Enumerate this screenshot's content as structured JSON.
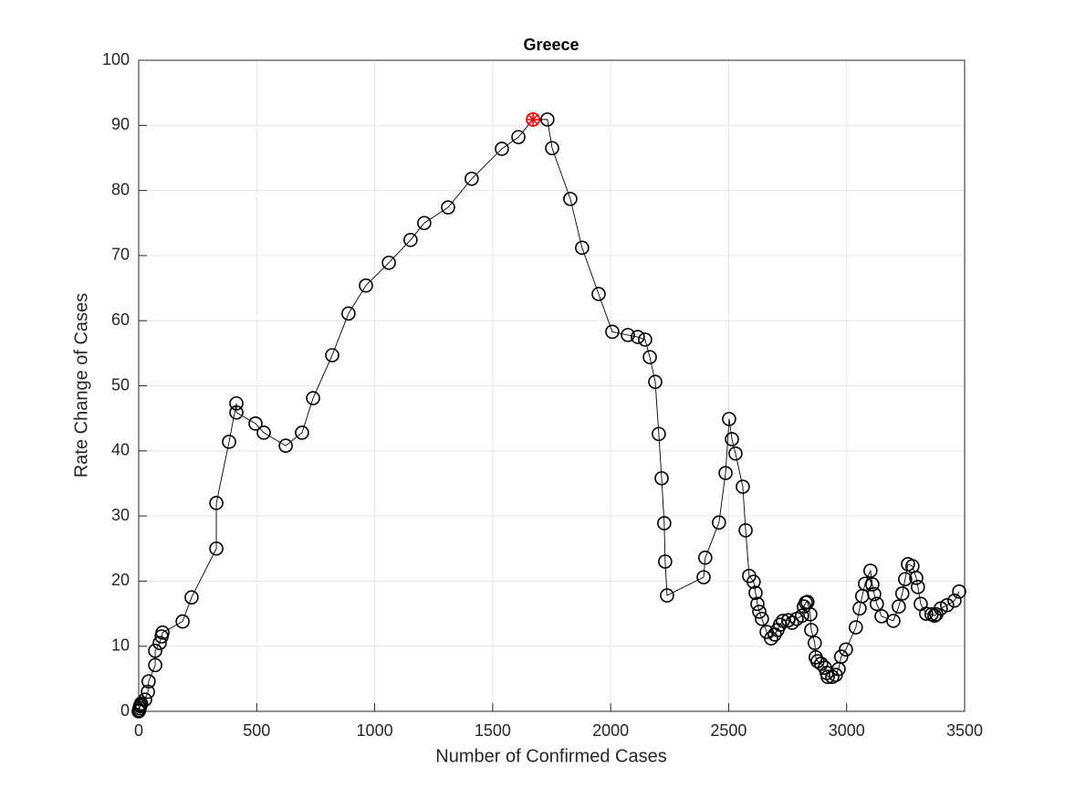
{
  "chart_data": {
    "type": "line",
    "title": "Greece",
    "xlabel": "Number of Confirmed Cases",
    "ylabel": "Rate Change of Cases",
    "x": [
      0,
      2,
      4,
      6,
      8,
      10,
      27,
      39,
      42,
      70,
      70,
      89,
      97,
      101,
      186,
      224,
      329,
      329,
      383,
      414,
      414,
      495,
      530,
      623,
      692,
      739,
      820,
      889,
      963,
      1060,
      1152,
      1210,
      1311,
      1411,
      1539,
      1609,
      1671,
      1732,
      1752,
      1829,
      1879,
      1949,
      2007,
      2073,
      2115,
      2146,
      2166,
      2189,
      2204,
      2216,
      2227,
      2231,
      2239,
      2394,
      2401,
      2459,
      2487,
      2502,
      2514,
      2529,
      2560,
      2572,
      2587,
      2606,
      2614,
      2622,
      2630,
      2641,
      2661,
      2680,
      2695,
      2707,
      2718,
      2730,
      2753,
      2769,
      2788,
      2811,
      2819,
      2827,
      2834,
      2846,
      2850,
      2865,
      2869,
      2877,
      2892,
      2908,
      2916,
      2920,
      2939,
      2954,
      2966,
      2977,
      2997,
      3039,
      3055,
      3066,
      3078,
      3101,
      3109,
      3117,
      3128,
      3148,
      3198,
      3221,
      3236,
      3248,
      3260,
      3279,
      3295,
      3302,
      3314,
      3337,
      3360,
      3372,
      3380,
      3399,
      3426,
      3457,
      3477
    ],
    "series": [
      {
        "color": "#000000",
        "values": [
          0,
          0.2,
          0.5,
          0.8,
          1.0,
          1.2,
          1.8,
          3.0,
          4.6,
          7.1,
          9.3,
          10.5,
          11.5,
          12.1,
          13.8,
          17.5,
          25.0,
          32.0,
          41.4,
          47.3,
          45.9,
          44.2,
          42.8,
          40.8,
          42.8,
          48.1,
          54.7,
          61.1,
          65.4,
          68.9,
          72.4,
          75.0,
          77.4,
          81.8,
          86.4,
          88.2,
          90.9,
          90.9,
          86.5,
          78.7,
          71.2,
          64.1,
          58.3,
          57.8,
          57.5,
          57.1,
          54.4,
          50.6,
          42.6,
          35.8,
          28.9,
          23.0,
          17.8,
          20.6,
          23.6,
          29.0,
          36.6,
          44.9,
          41.8,
          39.6,
          34.5,
          27.8,
          20.8,
          19.9,
          18.2,
          16.5,
          15.3,
          14.2,
          12.2,
          11.2,
          11.8,
          12.5,
          13.3,
          13.9,
          14.0,
          13.6,
          14.2,
          14.7,
          16.1,
          16.7,
          16.8,
          14.9,
          12.5,
          10.5,
          8.3,
          7.7,
          7.3,
          6.7,
          5.9,
          5.3,
          5.3,
          5.6,
          6.5,
          8.4,
          9.5,
          12.9,
          15.8,
          17.7,
          19.6,
          21.6,
          19.5,
          18.0,
          16.5,
          14.6,
          13.9,
          16.1,
          18.1,
          20.3,
          22.6,
          22.3,
          20.5,
          19.1,
          16.5,
          15.0,
          14.9,
          14.7,
          14.9,
          15.8,
          16.3,
          17.0,
          18.4
        ]
      }
    ],
    "highlight": {
      "x": 1671,
      "y": 90.9,
      "color": "#ff0000"
    },
    "xlim": [
      0,
      3500
    ],
    "xticks": [
      0,
      500,
      1000,
      1500,
      2000,
      2500,
      3000,
      3500
    ],
    "ylim": [
      0,
      100
    ],
    "yticks": [
      0,
      10,
      20,
      30,
      40,
      50,
      60,
      70,
      80,
      90,
      100
    ],
    "grid": true
  }
}
